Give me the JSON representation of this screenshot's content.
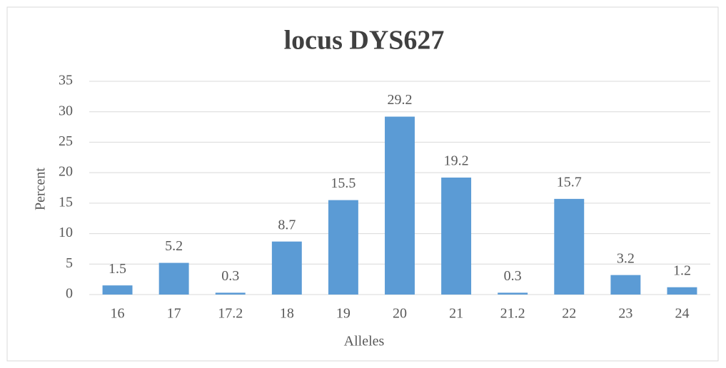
{
  "chart_data": {
    "type": "bar",
    "title": "locus DYS627",
    "x_label": "Alleles",
    "y_label": "Percent",
    "categories": [
      "16",
      "17",
      "17.2",
      "18",
      "19",
      "20",
      "21",
      "21.2",
      "22",
      "23",
      "24"
    ],
    "values": [
      1.5,
      5.2,
      0.3,
      8.7,
      15.5,
      29.2,
      19.2,
      0.3,
      15.7,
      3.2,
      1.2
    ],
    "color": "#5b9bd5",
    "ylim": [
      0,
      35
    ],
    "yticks": [
      0,
      5,
      10,
      15,
      20,
      25,
      30,
      35
    ],
    "grid": true
  }
}
